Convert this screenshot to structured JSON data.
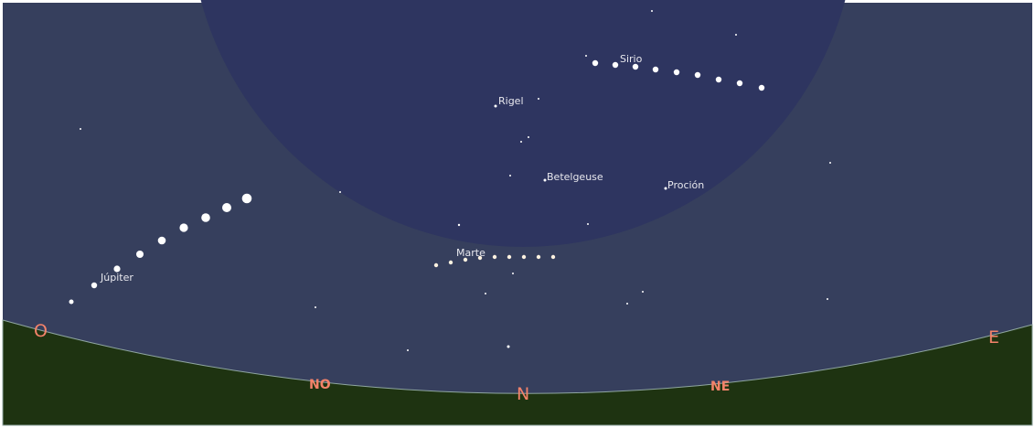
{
  "sky": {
    "labels": [
      "Sirio",
      "Rigel",
      "Betelgeuse",
      "Proción",
      "Marte",
      "Júpiter"
    ]
  },
  "horizon": {
    "cardinals": [
      "O",
      "NO",
      "N",
      "NE",
      "E"
    ]
  }
}
